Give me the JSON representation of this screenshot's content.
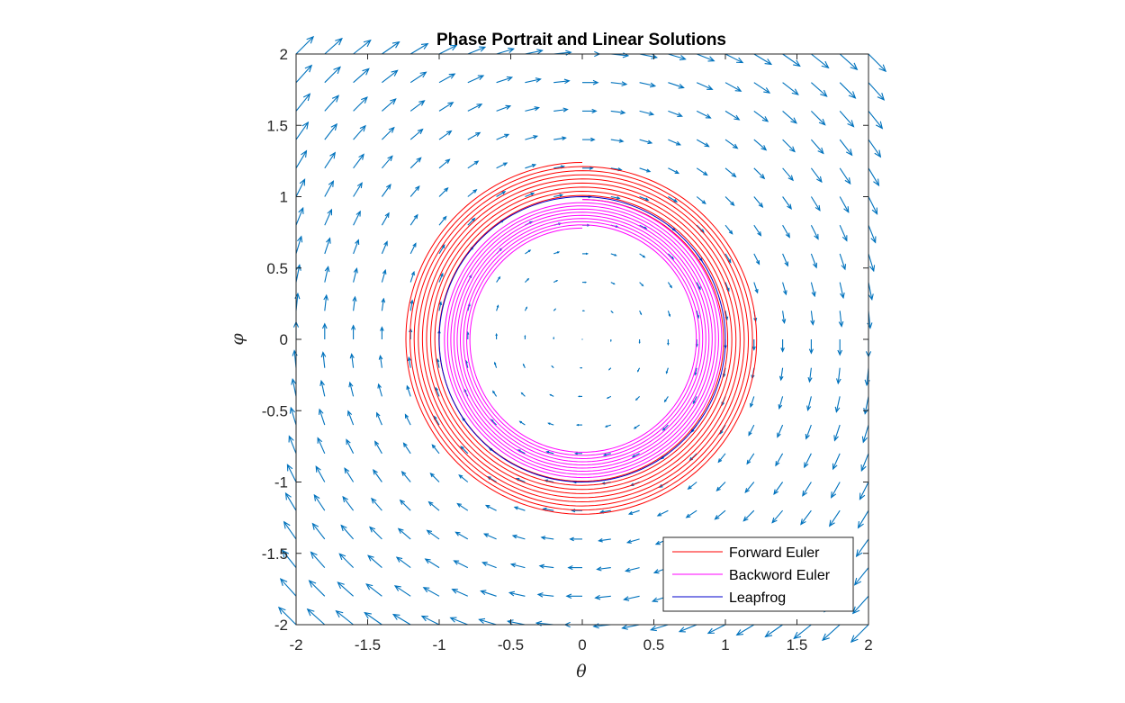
{
  "chart_data": {
    "type": "quiver-with-lines",
    "title": "Phase Portrait and Linear Solutions",
    "xlabel": "θ",
    "ylabel": "φ",
    "xlim": [
      -2,
      2
    ],
    "ylim": [
      -2,
      2
    ],
    "x_ticks": [
      "-2",
      "-1.5",
      "-1",
      "-0.5",
      "0",
      "0.5",
      "1",
      "1.5",
      "2"
    ],
    "y_ticks": [
      "2",
      "1.5",
      "1",
      "0.5",
      "0",
      "-0.5",
      "-1",
      "-1.5",
      "-2"
    ],
    "legend_position": "bottom-right",
    "vector_field": {
      "field": "(dθ, dφ) = (φ, -θ)",
      "grid_min": -2,
      "grid_max": 2,
      "grid_step": 0.2,
      "color": "#0072BD"
    },
    "series": [
      {
        "name": "Forward Euler",
        "color": "#FF0000",
        "start_radius": 0.98,
        "end_radius": 1.24,
        "turns": 9
      },
      {
        "name": "Backword Euler",
        "color": "#FF00FF",
        "start_radius": 0.98,
        "end_radius": 0.78,
        "turns": 9
      },
      {
        "name": "Leapfrog",
        "color": "#0000CC",
        "start_radius": 1.0,
        "end_radius": 1.0,
        "turns": 1
      }
    ]
  }
}
